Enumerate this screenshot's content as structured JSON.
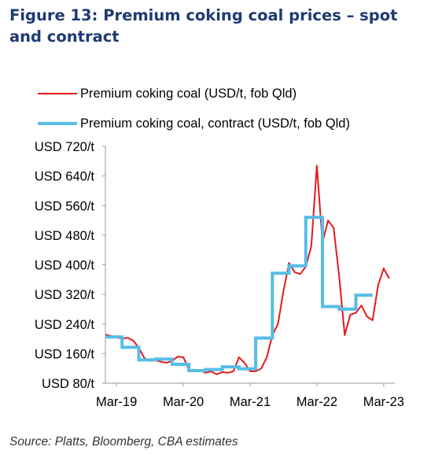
{
  "title": "Figure 13: Premium coking coal prices – spot and contract",
  "source": "Source: Platts, Bloomberg, CBA estimates",
  "chart_data": {
    "type": "line",
    "y_tick_labels": [
      "USD 80/t",
      "USD 160/t",
      "USD 240/t",
      "USD 320/t",
      "USD 400/t",
      "USD 480/t",
      "USD 560/t",
      "USD 640/t",
      "USD 720/t"
    ],
    "y_ticks": [
      80,
      160,
      240,
      320,
      400,
      480,
      560,
      640,
      720
    ],
    "ylim": [
      80,
      720
    ],
    "x_tick_labels": [
      "Mar-19",
      "Mar-20",
      "Mar-21",
      "Mar-22",
      "Mar-23"
    ],
    "x_ticks": [
      "2019-03",
      "2020-03",
      "2021-03",
      "2022-03",
      "2023-03"
    ],
    "xlim": [
      "2019-01",
      "2023-05"
    ],
    "grid": false,
    "legend_position": "top",
    "series": [
      {
        "name": "Premium coking coal (USD/t, fob Qld)",
        "color": "#e5191c",
        "style": "thin",
        "points": [
          [
            "2019-01",
            211
          ],
          [
            "2019-02",
            208
          ],
          [
            "2019-03",
            204
          ],
          [
            "2019-04",
            200
          ],
          [
            "2019-05",
            203
          ],
          [
            "2019-06",
            195
          ],
          [
            "2019-07",
            176
          ],
          [
            "2019-08",
            148
          ],
          [
            "2019-09",
            140
          ],
          [
            "2019-10",
            142
          ],
          [
            "2019-11",
            138
          ],
          [
            "2019-12",
            135
          ],
          [
            "2020-01",
            140
          ],
          [
            "2020-02",
            152
          ],
          [
            "2020-03",
            150
          ],
          [
            "2020-04",
            117
          ],
          [
            "2020-05",
            113
          ],
          [
            "2020-06",
            115
          ],
          [
            "2020-07",
            108
          ],
          [
            "2020-08",
            112
          ],
          [
            "2020-09",
            104
          ],
          [
            "2020-10",
            110
          ],
          [
            "2020-11",
            108
          ],
          [
            "2020-12",
            112
          ],
          [
            "2021-01",
            150
          ],
          [
            "2021-02",
            135
          ],
          [
            "2021-03",
            112
          ],
          [
            "2021-04",
            112
          ],
          [
            "2021-05",
            120
          ],
          [
            "2021-06",
            150
          ],
          [
            "2021-07",
            210
          ],
          [
            "2021-08",
            240
          ],
          [
            "2021-09",
            330
          ],
          [
            "2021-10",
            405
          ],
          [
            "2021-11",
            380
          ],
          [
            "2021-12",
            375
          ],
          [
            "2022-01",
            395
          ],
          [
            "2022-02",
            450
          ],
          [
            "2022-03",
            668
          ],
          [
            "2022-04",
            460
          ],
          [
            "2022-05",
            520
          ],
          [
            "2022-06",
            500
          ],
          [
            "2022-07",
            370
          ],
          [
            "2022-08",
            210
          ],
          [
            "2022-09",
            265
          ],
          [
            "2022-10",
            270
          ],
          [
            "2022-11",
            290
          ],
          [
            "2022-12",
            260
          ],
          [
            "2023-01",
            250
          ],
          [
            "2023-02",
            345
          ],
          [
            "2023-03",
            390
          ],
          [
            "2023-04",
            363
          ]
        ]
      },
      {
        "name": "Premium coking coal, contract (USD/t, fob Qld)",
        "color": "#56bde6",
        "style": "thick",
        "points": [
          [
            "2019-01",
            205
          ],
          [
            "2019-04",
            205
          ],
          [
            "2019-04",
            177
          ],
          [
            "2019-07",
            177
          ],
          [
            "2019-07",
            143
          ],
          [
            "2019-10",
            143
          ],
          [
            "2019-10",
            145
          ],
          [
            "2020-01",
            145
          ],
          [
            "2020-01",
            131
          ],
          [
            "2020-04",
            131
          ],
          [
            "2020-04",
            114
          ],
          [
            "2020-07",
            114
          ],
          [
            "2020-07",
            117
          ],
          [
            "2020-10",
            117
          ],
          [
            "2020-10",
            124
          ],
          [
            "2021-01",
            124
          ],
          [
            "2021-01",
            119
          ],
          [
            "2021-04",
            119
          ],
          [
            "2021-04",
            202
          ],
          [
            "2021-07",
            202
          ],
          [
            "2021-07",
            377
          ],
          [
            "2021-10",
            377
          ],
          [
            "2021-10",
            397
          ],
          [
            "2022-01",
            397
          ],
          [
            "2022-01",
            528
          ],
          [
            "2022-04",
            528
          ],
          [
            "2022-04",
            287
          ],
          [
            "2022-07",
            287
          ],
          [
            "2022-07",
            280
          ],
          [
            "2022-10",
            280
          ],
          [
            "2022-10",
            318
          ],
          [
            "2023-01",
            318
          ]
        ]
      }
    ]
  }
}
